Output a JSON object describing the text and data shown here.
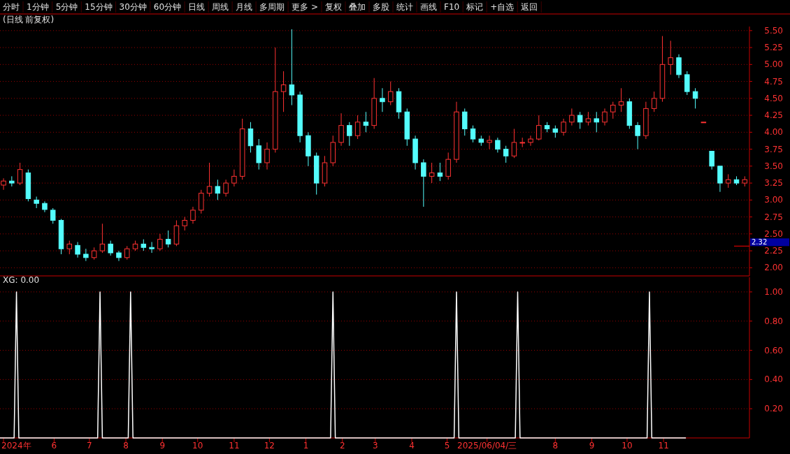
{
  "chart_data": [
    {
      "type": "other",
      "annotations": [
        "分时",
        "1分钟",
        "5分钟",
        "15分钟",
        "30分钟",
        "60分钟",
        "日线",
        "周线",
        "月线",
        "多周期",
        "更多 >",
        "复权",
        "叠加",
        "多股",
        "统计",
        "画线",
        "F10",
        "标记",
        "+自选",
        "返回"
      ]
    },
    {
      "type": "candlestick",
      "title": "(日线 前复权)",
      "tick_labels": "y",
      "grid": "y",
      "xlim": [
        "2024-04-16",
        "2026-01-13"
      ],
      "ylim": [
        1.88,
        5.56
      ],
      "yticks": [
        {
          "value": 2,
          "label": "2.00"
        },
        {
          "value": 2.25,
          "label": "2.25"
        },
        {
          "value": 2.5,
          "label": "2.50"
        },
        {
          "value": 2.75,
          "label": "2.75"
        },
        {
          "value": 3,
          "label": "3.00"
        },
        {
          "value": 3.25,
          "label": "3.25"
        },
        {
          "value": 3.5,
          "label": "3.50"
        },
        {
          "value": 3.75,
          "label": "3.75"
        },
        {
          "value": 4,
          "label": "4.00"
        },
        {
          "value": 4.25,
          "label": "4.25"
        },
        {
          "value": 4.5,
          "label": "4.50"
        },
        {
          "value": 4.75,
          "label": "4.75"
        },
        {
          "value": 5,
          "label": "5.00"
        },
        {
          "value": 5.25,
          "label": "5.25"
        },
        {
          "value": 5.5,
          "label": "5.50"
        }
      ],
      "ref_lines": [
        {
          "axis": "y",
          "value": 2.32,
          "label": "2.32",
          "color": "#ff0000"
        }
      ],
      "x": [
        "2024-04-19",
        "2024-04-26",
        "2024-05-03",
        "2024-05-10",
        "2024-05-17",
        "2024-05-24",
        "2024-05-31",
        "2024-06-07",
        "2024-06-14",
        "2024-06-21",
        "2024-06-28",
        "2024-07-05",
        "2024-07-12",
        "2024-07-19",
        "2024-07-26",
        "2024-08-02",
        "2024-08-09",
        "2024-08-16",
        "2024-08-23",
        "2024-08-30",
        "2024-09-06",
        "2024-09-13",
        "2024-09-20",
        "2024-09-27",
        "2024-10-04",
        "2024-10-11",
        "2024-10-18",
        "2024-10-25",
        "2024-11-01",
        "2024-11-08",
        "2024-11-15",
        "2024-11-22",
        "2024-11-29",
        "2024-12-06",
        "2024-12-13",
        "2024-12-20",
        "2024-12-27",
        "2025-01-03",
        "2025-01-10",
        "2025-01-17",
        "2025-01-24",
        "2025-01-31",
        "2025-02-07",
        "2025-02-14",
        "2025-02-21",
        "2025-02-28",
        "2025-03-07",
        "2025-03-14",
        "2025-03-21",
        "2025-03-28",
        "2025-04-04",
        "2025-04-11",
        "2025-04-18",
        "2025-04-25",
        "2025-05-02",
        "2025-05-09",
        "2025-05-16",
        "2025-05-23",
        "2025-05-30",
        "2025-06-06",
        "2025-06-13",
        "2025-06-20",
        "2025-06-27",
        "2025-07-04",
        "2025-07-11",
        "2025-07-18",
        "2025-07-25",
        "2025-08-01",
        "2025-08-08",
        "2025-08-15",
        "2025-08-22",
        "2025-08-29",
        "2025-09-05",
        "2025-09-12",
        "2025-09-19",
        "2025-09-26",
        "2025-10-03",
        "2025-10-10",
        "2025-10-17",
        "2025-10-24",
        "2025-10-31",
        "2025-11-07",
        "2025-11-14",
        "2025-11-21",
        "2025-11-28",
        "2025-12-05",
        "2025-12-12",
        "2025-12-19",
        "2025-12-26",
        "2026-01-02",
        "2026-01-09"
      ],
      "ohlc": [
        [
          3.22,
          3.32,
          3.15,
          3.28
        ],
        [
          3.28,
          3.35,
          3.2,
          3.25
        ],
        [
          3.25,
          3.55,
          3.22,
          3.45
        ],
        [
          3.4,
          3.45,
          2.98,
          3.02
        ],
        [
          3.0,
          3.05,
          2.88,
          2.95
        ],
        [
          2.95,
          2.98,
          2.82,
          2.86
        ],
        [
          2.85,
          2.88,
          2.65,
          2.7
        ],
        [
          2.7,
          2.72,
          2.2,
          2.28
        ],
        [
          2.28,
          2.4,
          2.2,
          2.35
        ],
        [
          2.33,
          2.38,
          2.15,
          2.2
        ],
        [
          2.2,
          2.28,
          2.1,
          2.15
        ],
        [
          2.15,
          2.3,
          2.12,
          2.25
        ],
        [
          2.25,
          2.65,
          2.22,
          2.35
        ],
        [
          2.35,
          2.4,
          2.18,
          2.22
        ],
        [
          2.22,
          2.25,
          2.1,
          2.15
        ],
        [
          2.15,
          2.32,
          2.12,
          2.28
        ],
        [
          2.28,
          2.4,
          2.25,
          2.35
        ],
        [
          2.35,
          2.42,
          2.25,
          2.3
        ],
        [
          2.3,
          2.38,
          2.22,
          2.28
        ],
        [
          2.28,
          2.5,
          2.25,
          2.42
        ],
        [
          2.42,
          2.55,
          2.3,
          2.35
        ],
        [
          2.35,
          2.7,
          2.32,
          2.62
        ],
        [
          2.62,
          2.75,
          2.55,
          2.7
        ],
        [
          2.7,
          2.9,
          2.65,
          2.85
        ],
        [
          2.85,
          3.15,
          2.8,
          3.1
        ],
        [
          3.1,
          3.55,
          3.05,
          3.2
        ],
        [
          3.2,
          3.3,
          3.0,
          3.1
        ],
        [
          3.1,
          3.3,
          3.05,
          3.25
        ],
        [
          3.25,
          3.45,
          3.2,
          3.35
        ],
        [
          3.35,
          4.2,
          3.3,
          4.05
        ],
        [
          4.05,
          4.15,
          3.7,
          3.8
        ],
        [
          3.8,
          3.9,
          3.45,
          3.55
        ],
        [
          3.55,
          3.85,
          3.45,
          3.75
        ],
        [
          3.75,
          5.25,
          3.7,
          4.6
        ],
        [
          4.6,
          4.9,
          4.3,
          4.7
        ],
        [
          4.7,
          5.52,
          4.4,
          4.55
        ],
        [
          4.55,
          4.6,
          3.85,
          3.95
        ],
        [
          3.95,
          4.0,
          3.5,
          3.65
        ],
        [
          3.65,
          3.7,
          3.08,
          3.25
        ],
        [
          3.25,
          3.65,
          3.2,
          3.55
        ],
        [
          3.55,
          3.95,
          3.5,
          3.85
        ],
        [
          3.85,
          4.28,
          3.8,
          4.1
        ],
        [
          4.1,
          4.15,
          3.8,
          3.95
        ],
        [
          3.95,
          4.25,
          3.9,
          4.15
        ],
        [
          4.15,
          4.3,
          4.0,
          4.1
        ],
        [
          4.1,
          4.8,
          4.05,
          4.5
        ],
        [
          4.5,
          4.65,
          4.3,
          4.45
        ],
        [
          4.45,
          4.75,
          4.4,
          4.6
        ],
        [
          4.6,
          4.65,
          4.2,
          4.3
        ],
        [
          4.3,
          4.35,
          3.8,
          3.9
        ],
        [
          3.9,
          3.95,
          3.45,
          3.55
        ],
        [
          3.55,
          3.6,
          2.9,
          3.35
        ],
        [
          3.35,
          3.55,
          3.25,
          3.4
        ],
        [
          3.4,
          3.55,
          3.28,
          3.35
        ],
        [
          3.35,
          3.7,
          3.3,
          3.6
        ],
        [
          3.6,
          4.45,
          3.55,
          4.3
        ],
        [
          4.3,
          4.35,
          3.95,
          4.05
        ],
        [
          4.05,
          4.1,
          3.85,
          3.9
        ],
        [
          3.9,
          3.95,
          3.8,
          3.85
        ],
        [
          3.85,
          3.95,
          3.75,
          3.88
        ],
        [
          3.88,
          3.92,
          3.7,
          3.75
        ],
        [
          3.75,
          3.8,
          3.55,
          3.65
        ],
        [
          3.65,
          4.05,
          3.62,
          3.85
        ],
        [
          3.85,
          3.92,
          3.78,
          3.85
        ],
        [
          3.85,
          3.95,
          3.8,
          3.9
        ],
        [
          3.9,
          4.25,
          3.88,
          4.1
        ],
        [
          4.1,
          4.15,
          4.0,
          4.05
        ],
        [
          4.05,
          4.1,
          3.92,
          4.0
        ],
        [
          4.0,
          4.2,
          3.95,
          4.15
        ],
        [
          4.15,
          4.35,
          4.1,
          4.25
        ],
        [
          4.25,
          4.3,
          4.05,
          4.15
        ],
        [
          4.15,
          4.3,
          4.1,
          4.2
        ],
        [
          4.2,
          4.3,
          4.0,
          4.15
        ],
        [
          4.15,
          4.35,
          4.1,
          4.3
        ],
        [
          4.3,
          4.45,
          4.2,
          4.4
        ],
        [
          4.4,
          4.65,
          4.3,
          4.45
        ],
        [
          4.45,
          4.5,
          4.05,
          4.1
        ],
        [
          4.1,
          4.15,
          3.75,
          3.95
        ],
        [
          3.95,
          4.45,
          3.9,
          4.35
        ],
        [
          4.35,
          4.6,
          4.3,
          4.5
        ],
        [
          4.5,
          5.42,
          4.45,
          5.0
        ],
        [
          5.0,
          5.35,
          4.85,
          5.1
        ],
        [
          5.1,
          5.15,
          4.8,
          4.85
        ],
        [
          4.85,
          4.9,
          4.55,
          4.6
        ],
        [
          4.6,
          4.65,
          4.35,
          4.5
        ],
        [
          4.15,
          4.15,
          4.15,
          4.15
        ],
        [
          3.72,
          3.72,
          3.45,
          3.5
        ],
        [
          3.5,
          3.5,
          3.12,
          3.25
        ],
        [
          3.25,
          3.38,
          3.18,
          3.3
        ],
        [
          3.3,
          3.35,
          3.22,
          3.25
        ],
        [
          3.25,
          3.35,
          3.2,
          3.3
        ]
      ]
    },
    {
      "type": "line",
      "title": "XG: 0.00",
      "grid": "y",
      "xlim": [
        "2024-04-16",
        "2026-01-13"
      ],
      "ylim": [
        0,
        1.1
      ],
      "yticks": [
        {
          "value": 0.2,
          "label": "0.20"
        },
        {
          "value": 0.4,
          "label": "0.40"
        },
        {
          "value": 0.6,
          "label": "0.60"
        },
        {
          "value": 0.8,
          "label": "0.80"
        },
        {
          "value": 1,
          "label": "1.00"
        }
      ],
      "xticks": [
        {
          "value": "2024-04-19",
          "label": "2024年"
        },
        {
          "value": "2024-06-01",
          "label": "6"
        },
        {
          "value": "2024-07-01",
          "label": "7"
        },
        {
          "value": "2024-08-01",
          "label": "8"
        },
        {
          "value": "2024-09-01",
          "label": "9"
        },
        {
          "value": "2024-10-01",
          "label": "10"
        },
        {
          "value": "2024-11-01",
          "label": "11"
        },
        {
          "value": "2024-12-01",
          "label": "12"
        },
        {
          "value": "2025-01-01",
          "label": "1"
        },
        {
          "value": "2025-02-01",
          "label": "2"
        },
        {
          "value": "2025-03-01",
          "label": "3"
        },
        {
          "value": "2025-04-01",
          "label": "4"
        },
        {
          "value": "2025-05-01",
          "label": "5"
        },
        {
          "value": "2025-06-04",
          "label": "2025/06/04/三"
        },
        {
          "value": "2025-08-01",
          "label": "8"
        },
        {
          "value": "2025-09-01",
          "label": "9"
        },
        {
          "value": "2025-10-01",
          "label": "10"
        },
        {
          "value": "2025-11-01",
          "label": "11"
        }
      ],
      "series": [
        {
          "color": "#ffffff",
          "x": [
            "2024-04-16",
            "2024-04-28",
            "2024-04-30",
            "2024-05-02",
            "2024-07-08",
            "2024-07-10",
            "2024-07-12",
            "2024-08-03",
            "2024-08-05",
            "2024-08-07",
            "2025-01-22",
            "2025-01-24",
            "2025-01-26",
            "2025-05-07",
            "2025-05-09",
            "2025-05-11",
            "2025-06-28",
            "2025-06-30",
            "2025-07-02",
            "2025-10-18",
            "2025-10-20",
            "2025-10-22",
            "2025-11-20"
          ],
          "values": [
            0,
            0,
            1,
            0,
            0,
            1,
            0,
            0,
            1,
            0,
            0,
            1,
            0,
            0,
            1,
            0,
            0,
            1,
            0,
            0,
            1,
            0,
            0
          ]
        }
      ]
    }
  ]
}
